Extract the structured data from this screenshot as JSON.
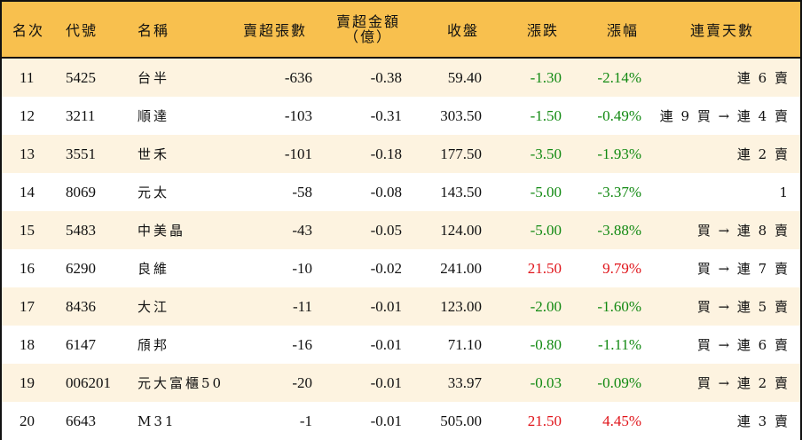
{
  "table": {
    "headers": {
      "rank": "名次",
      "code": "代號",
      "name": "名稱",
      "net_sell_lots": "賣超張數",
      "net_sell_amount_line1": "賣超金額",
      "net_sell_amount_line2": "（億）",
      "close": "收盤",
      "change": "漲跌",
      "change_pct": "漲幅",
      "streak": "連賣天數"
    },
    "colors": {
      "header_bg": "#f8c04e",
      "row_odd_bg": "#fdf3e0",
      "row_even_bg": "#ffffff",
      "down": "#138a13",
      "up": "#e0151b"
    },
    "rows": [
      {
        "rank": "11",
        "code": "5425",
        "name": "台半",
        "lots": "-636",
        "amount": "-0.38",
        "close": "59.40",
        "change": "-1.30",
        "pct": "-2.14%",
        "dir": "down",
        "streak": "連 6 賣"
      },
      {
        "rank": "12",
        "code": "3211",
        "name": "順達",
        "lots": "-103",
        "amount": "-0.31",
        "close": "303.50",
        "change": "-1.50",
        "pct": "-0.49%",
        "dir": "down",
        "streak": "連 9 買 → 連 4 賣"
      },
      {
        "rank": "13",
        "code": "3551",
        "name": "世禾",
        "lots": "-101",
        "amount": "-0.18",
        "close": "177.50",
        "change": "-3.50",
        "pct": "-1.93%",
        "dir": "down",
        "streak": "連 2 賣"
      },
      {
        "rank": "14",
        "code": "8069",
        "name": "元太",
        "lots": "-58",
        "amount": "-0.08",
        "close": "143.50",
        "change": "-5.00",
        "pct": "-3.37%",
        "dir": "down",
        "streak": "1"
      },
      {
        "rank": "15",
        "code": "5483",
        "name": "中美晶",
        "lots": "-43",
        "amount": "-0.05",
        "close": "124.00",
        "change": "-5.00",
        "pct": "-3.88%",
        "dir": "down",
        "streak": "買 → 連 8 賣"
      },
      {
        "rank": "16",
        "code": "6290",
        "name": "良維",
        "lots": "-10",
        "amount": "-0.02",
        "close": "241.00",
        "change": "21.50",
        "pct": "9.79%",
        "dir": "up",
        "streak": "買 → 連 7 賣"
      },
      {
        "rank": "17",
        "code": "8436",
        "name": "大江",
        "lots": "-11",
        "amount": "-0.01",
        "close": "123.00",
        "change": "-2.00",
        "pct": "-1.60%",
        "dir": "down",
        "streak": "買 → 連 5 賣"
      },
      {
        "rank": "18",
        "code": "6147",
        "name": "頎邦",
        "lots": "-16",
        "amount": "-0.01",
        "close": "71.10",
        "change": "-0.80",
        "pct": "-1.11%",
        "dir": "down",
        "streak": "買 → 連 6 賣"
      },
      {
        "rank": "19",
        "code": "006201",
        "name": "元大富櫃50",
        "lots": "-20",
        "amount": "-0.01",
        "close": "33.97",
        "change": "-0.03",
        "pct": "-0.09%",
        "dir": "down",
        "streak": "買 → 連 2 賣"
      },
      {
        "rank": "20",
        "code": "6643",
        "name": "M31",
        "lots": "-1",
        "amount": "-0.01",
        "close": "505.00",
        "change": "21.50",
        "pct": "4.45%",
        "dir": "up",
        "streak": "連 3 賣"
      }
    ]
  }
}
